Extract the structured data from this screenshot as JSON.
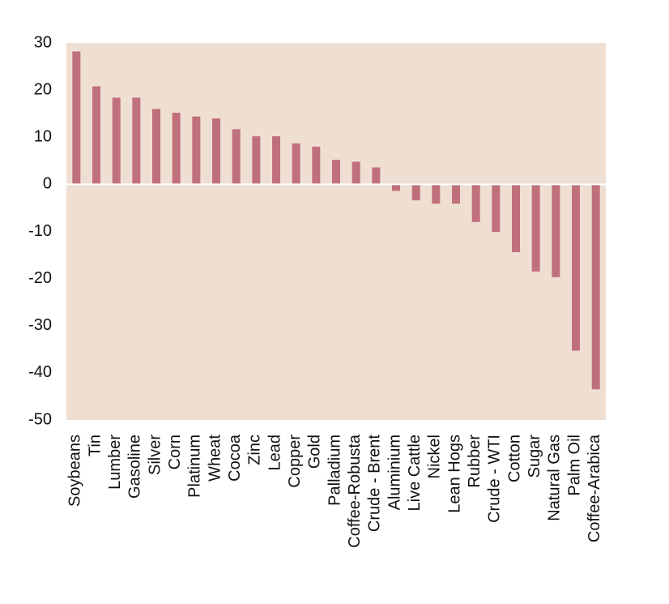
{
  "chart_data": {
    "type": "bar",
    "categories": [
      "Soybeans",
      "Tin",
      "Lumber",
      "Gasoline",
      "Silver",
      "Corn",
      "Platinum",
      "Wheat",
      "Cocoa",
      "Zinc",
      "Lead",
      "Copper",
      "Gold",
      "Palladium",
      "Coffee-Robusta",
      "Crude - Brent",
      "Aluminium",
      "Live Cattle",
      "Nickel",
      "Lean Hogs",
      "Rubber",
      "Crude - WTI",
      "Cotton",
      "Sugar",
      "Natural Gas",
      "Palm Oil",
      "Coffee-Arabica"
    ],
    "values": [
      28.2,
      20.8,
      18.4,
      18.4,
      16.0,
      15.2,
      14.4,
      14.0,
      11.7,
      10.2,
      10.2,
      8.7,
      8.0,
      5.2,
      4.8,
      3.6,
      -1.4,
      -3.4,
      -4.1,
      -4.1,
      -8.0,
      -10.1,
      -14.4,
      -18.5,
      -19.7,
      -35.3,
      -43.5
    ],
    "yticks": [
      30,
      20,
      10,
      0,
      -10,
      -20,
      -30,
      -40,
      -50
    ],
    "ylim": [
      -50,
      30
    ],
    "title": "",
    "xlabel": "",
    "ylabel": "",
    "grid": false,
    "colors": {
      "plot_background": "#EFDFD3",
      "bar": "#C0707A",
      "zero_line": "#FFFFFF",
      "text": "#111111"
    }
  }
}
